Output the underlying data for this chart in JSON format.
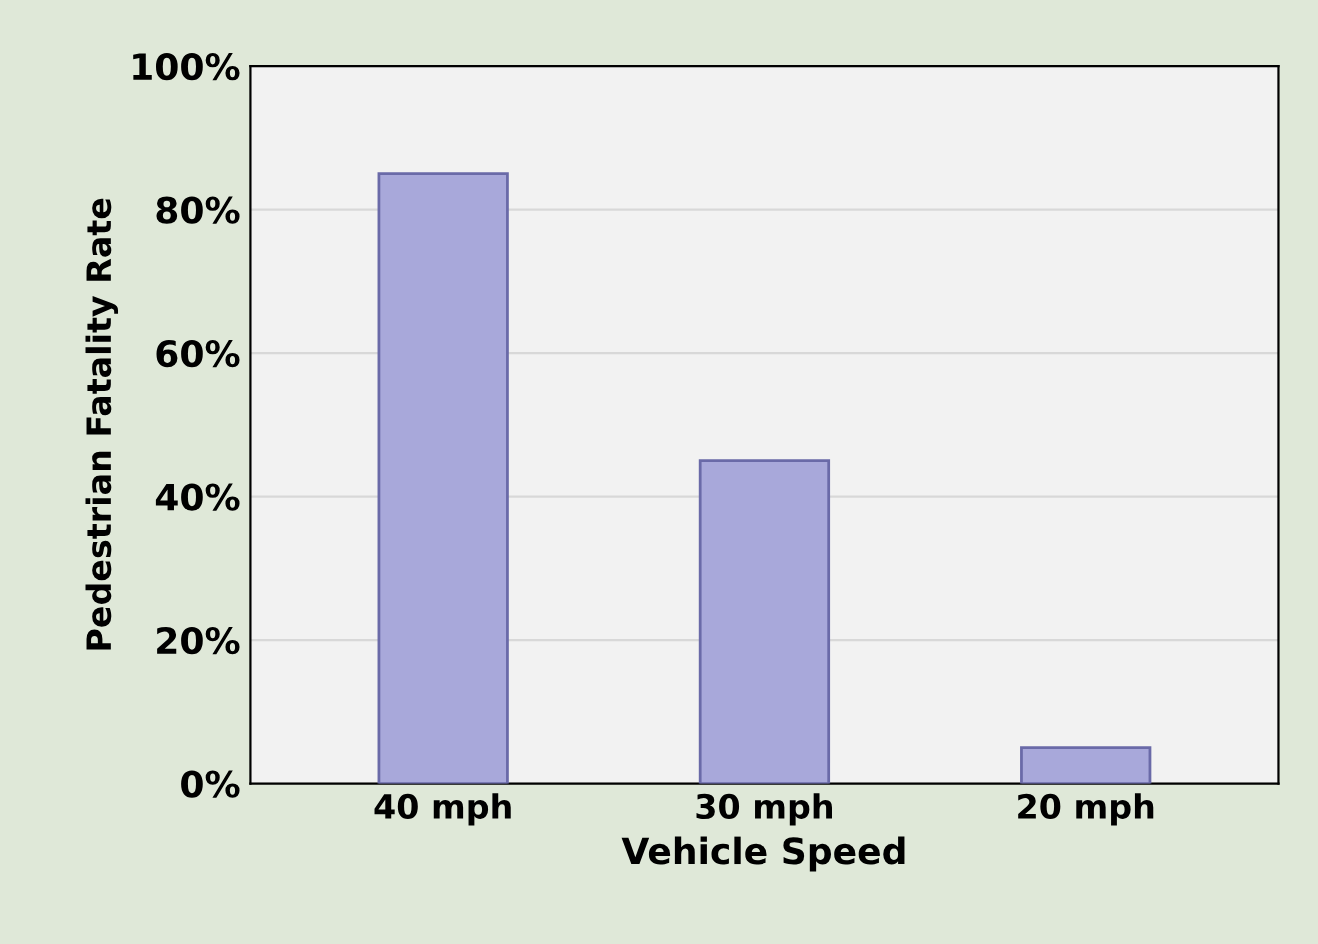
{
  "chart_data": {
    "type": "bar",
    "xlabel": "Vehicle Speed",
    "ylabel": "Pedestrian Fatality Rate",
    "categories": [
      "40 mph",
      "30 mph",
      "20 mph"
    ],
    "values": [
      85,
      45,
      5
    ],
    "color": "#a8a8da",
    "ylim": [
      0,
      100
    ],
    "yticks": [
      {
        "value": 0,
        "label": "0%"
      },
      {
        "value": 20,
        "label": "20%"
      },
      {
        "value": 40,
        "label": "40%"
      },
      {
        "value": 60,
        "label": "60%"
      },
      {
        "value": 80,
        "label": "80%"
      },
      {
        "value": 100,
        "label": "100%"
      }
    ],
    "grid": "y"
  }
}
